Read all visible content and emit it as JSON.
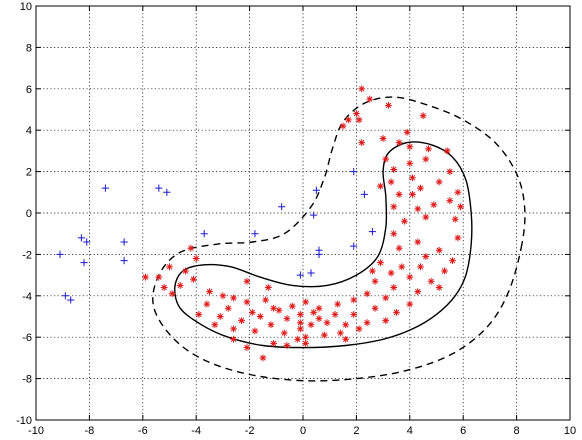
{
  "chart_data": {
    "type": "scatter",
    "title": "",
    "xlabel": "",
    "ylabel": "",
    "xlim": [
      -10,
      10
    ],
    "ylim": [
      -10,
      10
    ],
    "xticks": [
      -10,
      -8,
      -6,
      -4,
      -2,
      0,
      2,
      4,
      6,
      8,
      10
    ],
    "yticks": [
      -10,
      -8,
      -6,
      -4,
      -2,
      0,
      2,
      4,
      6,
      8,
      10
    ],
    "grid": true,
    "series": [
      {
        "marker": "plus",
        "color": "#1a1ad0",
        "points": [
          [
            -9.1,
            -2.0
          ],
          [
            -8.9,
            -4.0
          ],
          [
            -8.7,
            -4.2
          ],
          [
            -8.3,
            -1.2
          ],
          [
            -8.1,
            -1.4
          ],
          [
            -8.2,
            -2.4
          ],
          [
            -7.4,
            1.2
          ],
          [
            -6.7,
            -1.4
          ],
          [
            -6.7,
            -2.3
          ],
          [
            -5.4,
            1.2
          ],
          [
            -5.1,
            1.0
          ],
          [
            -3.7,
            -1.0
          ],
          [
            -1.8,
            -1.0
          ],
          [
            -0.8,
            0.3
          ],
          [
            -0.1,
            -3.0
          ],
          [
            0.3,
            -2.9
          ],
          [
            0.4,
            -0.1
          ],
          [
            0.5,
            1.1
          ],
          [
            0.6,
            -2.0
          ],
          [
            0.6,
            -1.8
          ],
          [
            1.9,
            -1.6
          ],
          [
            2.6,
            -0.9
          ],
          [
            1.9,
            2.0
          ],
          [
            2.3,
            0.9
          ]
        ]
      },
      {
        "marker": "asterisk",
        "color": "#e01a1a",
        "points": [
          [
            2.2,
            6.0
          ],
          [
            2.5,
            5.5
          ],
          [
            2.0,
            4.8
          ],
          [
            1.7,
            4.5
          ],
          [
            1.5,
            4.2
          ],
          [
            2.1,
            4.5
          ],
          [
            3.2,
            5.2
          ],
          [
            3.9,
            3.9
          ],
          [
            3.6,
            3.4
          ],
          [
            4.0,
            3.2
          ],
          [
            4.5,
            4.7
          ],
          [
            4.7,
            3.1
          ],
          [
            5.4,
            3.0
          ],
          [
            3.1,
            2.6
          ],
          [
            3.4,
            2.1
          ],
          [
            4.0,
            2.4
          ],
          [
            4.6,
            2.6
          ],
          [
            5.5,
            2.0
          ],
          [
            3.3,
            1.5
          ],
          [
            4.1,
            1.7
          ],
          [
            2.9,
            1.3
          ],
          [
            4.4,
            1.2
          ],
          [
            5.1,
            1.5
          ],
          [
            5.8,
            1.0
          ],
          [
            3.6,
            0.9
          ],
          [
            4.1,
            0.9
          ],
          [
            3.4,
            0.3
          ],
          [
            4.3,
            0.2
          ],
          [
            5.5,
            0.6
          ],
          [
            5.9,
            0.3
          ],
          [
            3.8,
            -0.4
          ],
          [
            4.6,
            -0.2
          ],
          [
            5.7,
            -0.3
          ],
          [
            3.4,
            -1.0
          ],
          [
            4.3,
            -1.4
          ],
          [
            5.1,
            -1.8
          ],
          [
            3.6,
            -1.7
          ],
          [
            4.6,
            -2.1
          ],
          [
            5.6,
            -2.3
          ],
          [
            3.7,
            -2.6
          ],
          [
            4.4,
            -2.6
          ],
          [
            2.9,
            -2.4
          ],
          [
            3.3,
            -2.9
          ],
          [
            5.3,
            -2.8
          ],
          [
            4.0,
            -3.1
          ],
          [
            4.8,
            -3.3
          ],
          [
            2.7,
            -3.3
          ],
          [
            3.4,
            -3.6
          ],
          [
            4.3,
            -3.8
          ],
          [
            5.1,
            -3.6
          ],
          [
            2.4,
            -3.9
          ],
          [
            3.1,
            -4.1
          ],
          [
            4.0,
            -4.4
          ],
          [
            1.9,
            -4.2
          ],
          [
            2.7,
            -4.6
          ],
          [
            3.5,
            -4.8
          ],
          [
            1.3,
            -4.4
          ],
          [
            1.9,
            -4.9
          ],
          [
            2.4,
            -5.3
          ],
          [
            3.1,
            -5.2
          ],
          [
            0.6,
            -4.6
          ],
          [
            1.2,
            -4.9
          ],
          [
            1.6,
            -5.4
          ],
          [
            2.1,
            -5.6
          ],
          [
            0.1,
            -4.3
          ],
          [
            0.4,
            -4.8
          ],
          [
            0.9,
            -5.3
          ],
          [
            1.4,
            -5.8
          ],
          [
            -0.4,
            -4.5
          ],
          [
            -0.1,
            -4.9
          ],
          [
            0.3,
            -5.4
          ],
          [
            0.8,
            -5.9
          ],
          [
            1.6,
            -6.1
          ],
          [
            -0.9,
            -4.7
          ],
          [
            -0.6,
            -5.1
          ],
          [
            -0.1,
            -5.6
          ],
          [
            0.1,
            -6.0
          ],
          [
            -1.4,
            -4.2
          ],
          [
            -1.1,
            -4.6
          ],
          [
            -1.6,
            -5.0
          ],
          [
            -1.2,
            -5.4
          ],
          [
            -0.7,
            -5.8
          ],
          [
            -2.1,
            -4.3
          ],
          [
            -1.9,
            -4.8
          ],
          [
            -2.3,
            -5.2
          ],
          [
            -1.8,
            -5.7
          ],
          [
            -2.6,
            -4.1
          ],
          [
            -2.8,
            -4.6
          ],
          [
            -3.1,
            -5.0
          ],
          [
            -2.6,
            -5.6
          ],
          [
            -3.0,
            -4.0
          ],
          [
            -3.5,
            -3.8
          ],
          [
            -3.6,
            -4.4
          ],
          [
            -3.9,
            -4.9
          ],
          [
            -3.3,
            -5.4
          ],
          [
            -4.1,
            -3.2
          ],
          [
            -4.4,
            -2.8
          ],
          [
            -4.0,
            -2.2
          ],
          [
            -4.6,
            -3.5
          ],
          [
            -4.9,
            -3.9
          ],
          [
            -5.2,
            -3.6
          ],
          [
            -5.4,
            -3.1
          ],
          [
            -5.0,
            -2.6
          ],
          [
            -4.2,
            -1.7
          ],
          [
            -5.9,
            -3.1
          ],
          [
            -2.1,
            -3.3
          ],
          [
            -1.3,
            -3.6
          ],
          [
            -2.6,
            -6.1
          ],
          [
            -2.1,
            -6.5
          ],
          [
            -1.1,
            -6.3
          ],
          [
            -0.6,
            -6.4
          ],
          [
            -0.2,
            -6.1
          ],
          [
            0.1,
            -6.3
          ],
          [
            -0.1,
            -5.3
          ],
          [
            0.6,
            -5.1
          ],
          [
            -1.5,
            -7.0
          ],
          [
            2.6,
            -2.8
          ],
          [
            5.8,
            -1.2
          ],
          [
            4.9,
            0.4
          ],
          [
            3.0,
            3.6
          ],
          [
            2.2,
            3.4
          ]
        ]
      }
    ],
    "contours": [
      {
        "style": "solid",
        "points": [
          [
            6.1,
            -3.0
          ],
          [
            5.7,
            -4.0
          ],
          [
            5.0,
            -4.9
          ],
          [
            4.1,
            -5.6
          ],
          [
            3.0,
            -6.1
          ],
          [
            1.6,
            -6.4
          ],
          [
            0.0,
            -6.5
          ],
          [
            -1.5,
            -6.4
          ],
          [
            -2.8,
            -6.0
          ],
          [
            -3.8,
            -5.4
          ],
          [
            -4.6,
            -4.6
          ],
          [
            -4.8,
            -3.6
          ],
          [
            -4.5,
            -2.8
          ],
          [
            -3.7,
            -2.5
          ],
          [
            -2.7,
            -2.6
          ],
          [
            -1.6,
            -3.1
          ],
          [
            -0.4,
            -3.5
          ],
          [
            0.9,
            -3.5
          ],
          [
            2.0,
            -3.0
          ],
          [
            2.8,
            -2.1
          ],
          [
            3.1,
            -0.7
          ],
          [
            3.1,
            0.8
          ],
          [
            3.0,
            2.0
          ],
          [
            3.2,
            2.9
          ],
          [
            3.9,
            3.4
          ],
          [
            4.8,
            3.3
          ],
          [
            5.6,
            2.7
          ],
          [
            6.1,
            1.6
          ],
          [
            6.3,
            0.0
          ],
          [
            6.3,
            -1.5
          ],
          [
            6.1,
            -3.0
          ]
        ]
      },
      {
        "style": "dashed",
        "points": [
          [
            8.2,
            -1.5
          ],
          [
            7.7,
            -3.8
          ],
          [
            6.9,
            -5.5
          ],
          [
            5.6,
            -6.8
          ],
          [
            3.9,
            -7.6
          ],
          [
            2.0,
            -8.0
          ],
          [
            0.0,
            -8.1
          ],
          [
            -2.0,
            -7.8
          ],
          [
            -3.7,
            -7.1
          ],
          [
            -4.9,
            -6.0
          ],
          [
            -5.6,
            -4.5
          ],
          [
            -5.4,
            -3.0
          ],
          [
            -4.6,
            -1.9
          ],
          [
            -3.2,
            -1.5
          ],
          [
            -1.9,
            -1.4
          ],
          [
            -0.7,
            -1.0
          ],
          [
            0.3,
            0.3
          ],
          [
            0.8,
            1.7
          ],
          [
            1.1,
            3.1
          ],
          [
            1.5,
            4.4
          ],
          [
            2.3,
            5.3
          ],
          [
            3.4,
            5.6
          ],
          [
            4.7,
            5.2
          ],
          [
            6.0,
            4.5
          ],
          [
            7.2,
            3.4
          ],
          [
            8.0,
            1.9
          ],
          [
            8.3,
            0.3
          ],
          [
            8.2,
            -1.5
          ]
        ]
      }
    ]
  }
}
